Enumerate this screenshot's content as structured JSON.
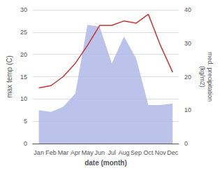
{
  "chart_data": {
    "type": "line",
    "xlabel": "date (month)",
    "ylabel": "max temp (C)",
    "y2label": "med. precipitation\n(kg/m2)",
    "categories": [
      "Jan",
      "Feb",
      "Mar",
      "Apr",
      "May",
      "Jun",
      "Jul",
      "Aug",
      "Sep",
      "Oct",
      "Nov",
      "Dec"
    ],
    "series": [
      {
        "type": "area",
        "axis": "y2",
        "color": "#b0b8e8",
        "values": [
          10.0,
          9.5,
          11.0,
          15.0,
          35.5,
          35.0,
          24.0,
          32.0,
          25.5,
          11.5,
          11.5,
          12.0
        ]
      },
      {
        "type": "line",
        "color": "#cc3333",
        "values": [
          12.5,
          13.0,
          15.0,
          18.0,
          22.0,
          26.5,
          26.5,
          27.5,
          27.0,
          29.0,
          22.0,
          16.0
        ]
      }
    ],
    "ylim": [
      0,
      30
    ],
    "yticks": [
      0,
      5,
      10,
      15,
      20,
      25,
      30
    ],
    "y2lim": [
      0,
      40
    ],
    "y2ticks": [
      0,
      10,
      20,
      30,
      40
    ],
    "grid": true
  }
}
